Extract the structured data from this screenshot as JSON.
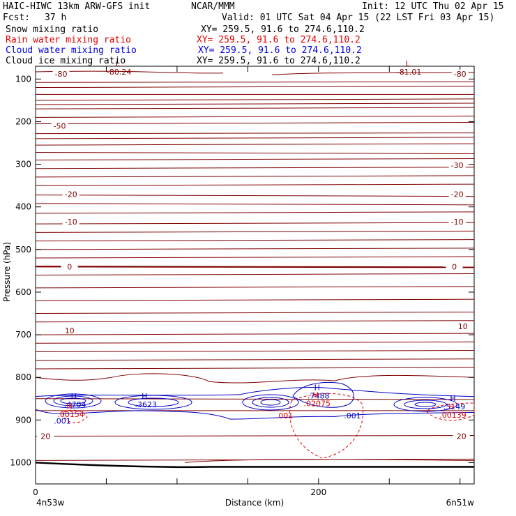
{
  "header": {
    "title_left": "HAIC-HIWC 13km ARW-GFS init",
    "title_center": "NCAR/MMM",
    "init": "Init: 12 UTC Thu 02 Apr 15",
    "fcst_label": "Fcst:",
    "fcst_value": "37 h",
    "valid": "Valid: 01 UTC Sat 04 Apr 15 (22 LST Fri 03 Apr 15)"
  },
  "fields": [
    {
      "name": "Snow mixing ratio",
      "xy": "XY= 259.5, 91.6 to 274.6,110.2",
      "color": "#000000"
    },
    {
      "name": "Rain water mixing ratio",
      "xy": "XY= 259.5, 91.6 to 274.6,110.2",
      "color": "#e00000"
    },
    {
      "name": "Cloud water mixing ratio",
      "xy": "XY= 259.5, 91.6 to 274.6,110.2",
      "color": "#0000e0"
    },
    {
      "name": "Cloud ice mixing ratio",
      "xy": "XY= 259.5, 91.6 to 274.6,110.2",
      "color": "#000000"
    }
  ],
  "chart_data": {
    "type": "contour",
    "xlabel": "Distance (km)",
    "ylabel": "Pressure (hPa)",
    "xlim": [
      0,
      310
    ],
    "ylim": [
      1050,
      70
    ],
    "x_ticks": [
      0,
      200
    ],
    "y_ticks": [
      100,
      200,
      300,
      400,
      500,
      600,
      700,
      800,
      900,
      1000
    ],
    "x_endpoints": [
      "4n53w",
      "6n51w"
    ],
    "colors": {
      "temperature": "#800000",
      "rain": "#e00000",
      "cloud_water": "#0000c0",
      "terrain": "#000000"
    },
    "temperature_labels": [
      {
        "text": "-80",
        "x": 18,
        "p": 88
      },
      {
        "text": "-80",
        "x": 300,
        "p": 88
      },
      {
        "text": "-50",
        "x": 17,
        "p": 210
      },
      {
        "text": "-30",
        "x": 298,
        "p": 302
      },
      {
        "text": "-20",
        "x": 25,
        "p": 370
      },
      {
        "text": "-20",
        "x": 298,
        "p": 370
      },
      {
        "text": "-10",
        "x": 25,
        "p": 435
      },
      {
        "text": "-10",
        "x": 298,
        "p": 435
      },
      {
        "text": "0",
        "x": 24,
        "p": 540
      },
      {
        "text": "0",
        "x": 296,
        "p": 540
      },
      {
        "text": "10",
        "x": 24,
        "p": 690
      },
      {
        "text": "10",
        "x": 302,
        "p": 680
      },
      {
        "text": "20",
        "x": 7,
        "p": 938
      },
      {
        "text": "20",
        "x": 301,
        "p": 938
      }
    ],
    "extrema": [
      {
        "type": "L",
        "value": "-80.24",
        "x": 58,
        "p": 80,
        "color": "#800000"
      },
      {
        "type": "L",
        "value": "-81.01",
        "x": 263,
        "p": 80,
        "color": "#800000"
      },
      {
        "type": "H",
        "value": ".4704",
        "x": 27,
        "p": 860,
        "color": "#0000c0"
      },
      {
        "type": "H",
        "value": ".3623",
        "x": 77,
        "p": 860,
        "color": "#0000c0"
      },
      {
        "type": "H",
        "value": ".7488",
        "x": 199,
        "p": 840,
        "color": "#0000c0"
      },
      {
        "type": "H",
        "value": ".5149",
        "x": 295,
        "p": 865,
        "color": "#0000c0"
      },
      {
        "type": "H",
        "value": ".00154",
        "x": 24,
        "p": 883,
        "color": "#e00000"
      },
      {
        "type": "H",
        "value": ".02075",
        "x": 198,
        "p": 858,
        "color": "#e00000"
      },
      {
        "type": "H",
        "value": ".00139",
        "x": 294,
        "p": 885,
        "color": "#e00000"
      }
    ],
    "contour_labels": [
      {
        "text": ".001",
        "x": 19,
        "p": 902,
        "color": "#0000c0"
      },
      {
        "type": "rain",
        "text": ".001",
        "x": 176,
        "p": 890,
        "color": "#e00000"
      },
      {
        "text": ".001",
        "x": 224,
        "p": 890,
        "color": "#0000c0"
      }
    ]
  }
}
